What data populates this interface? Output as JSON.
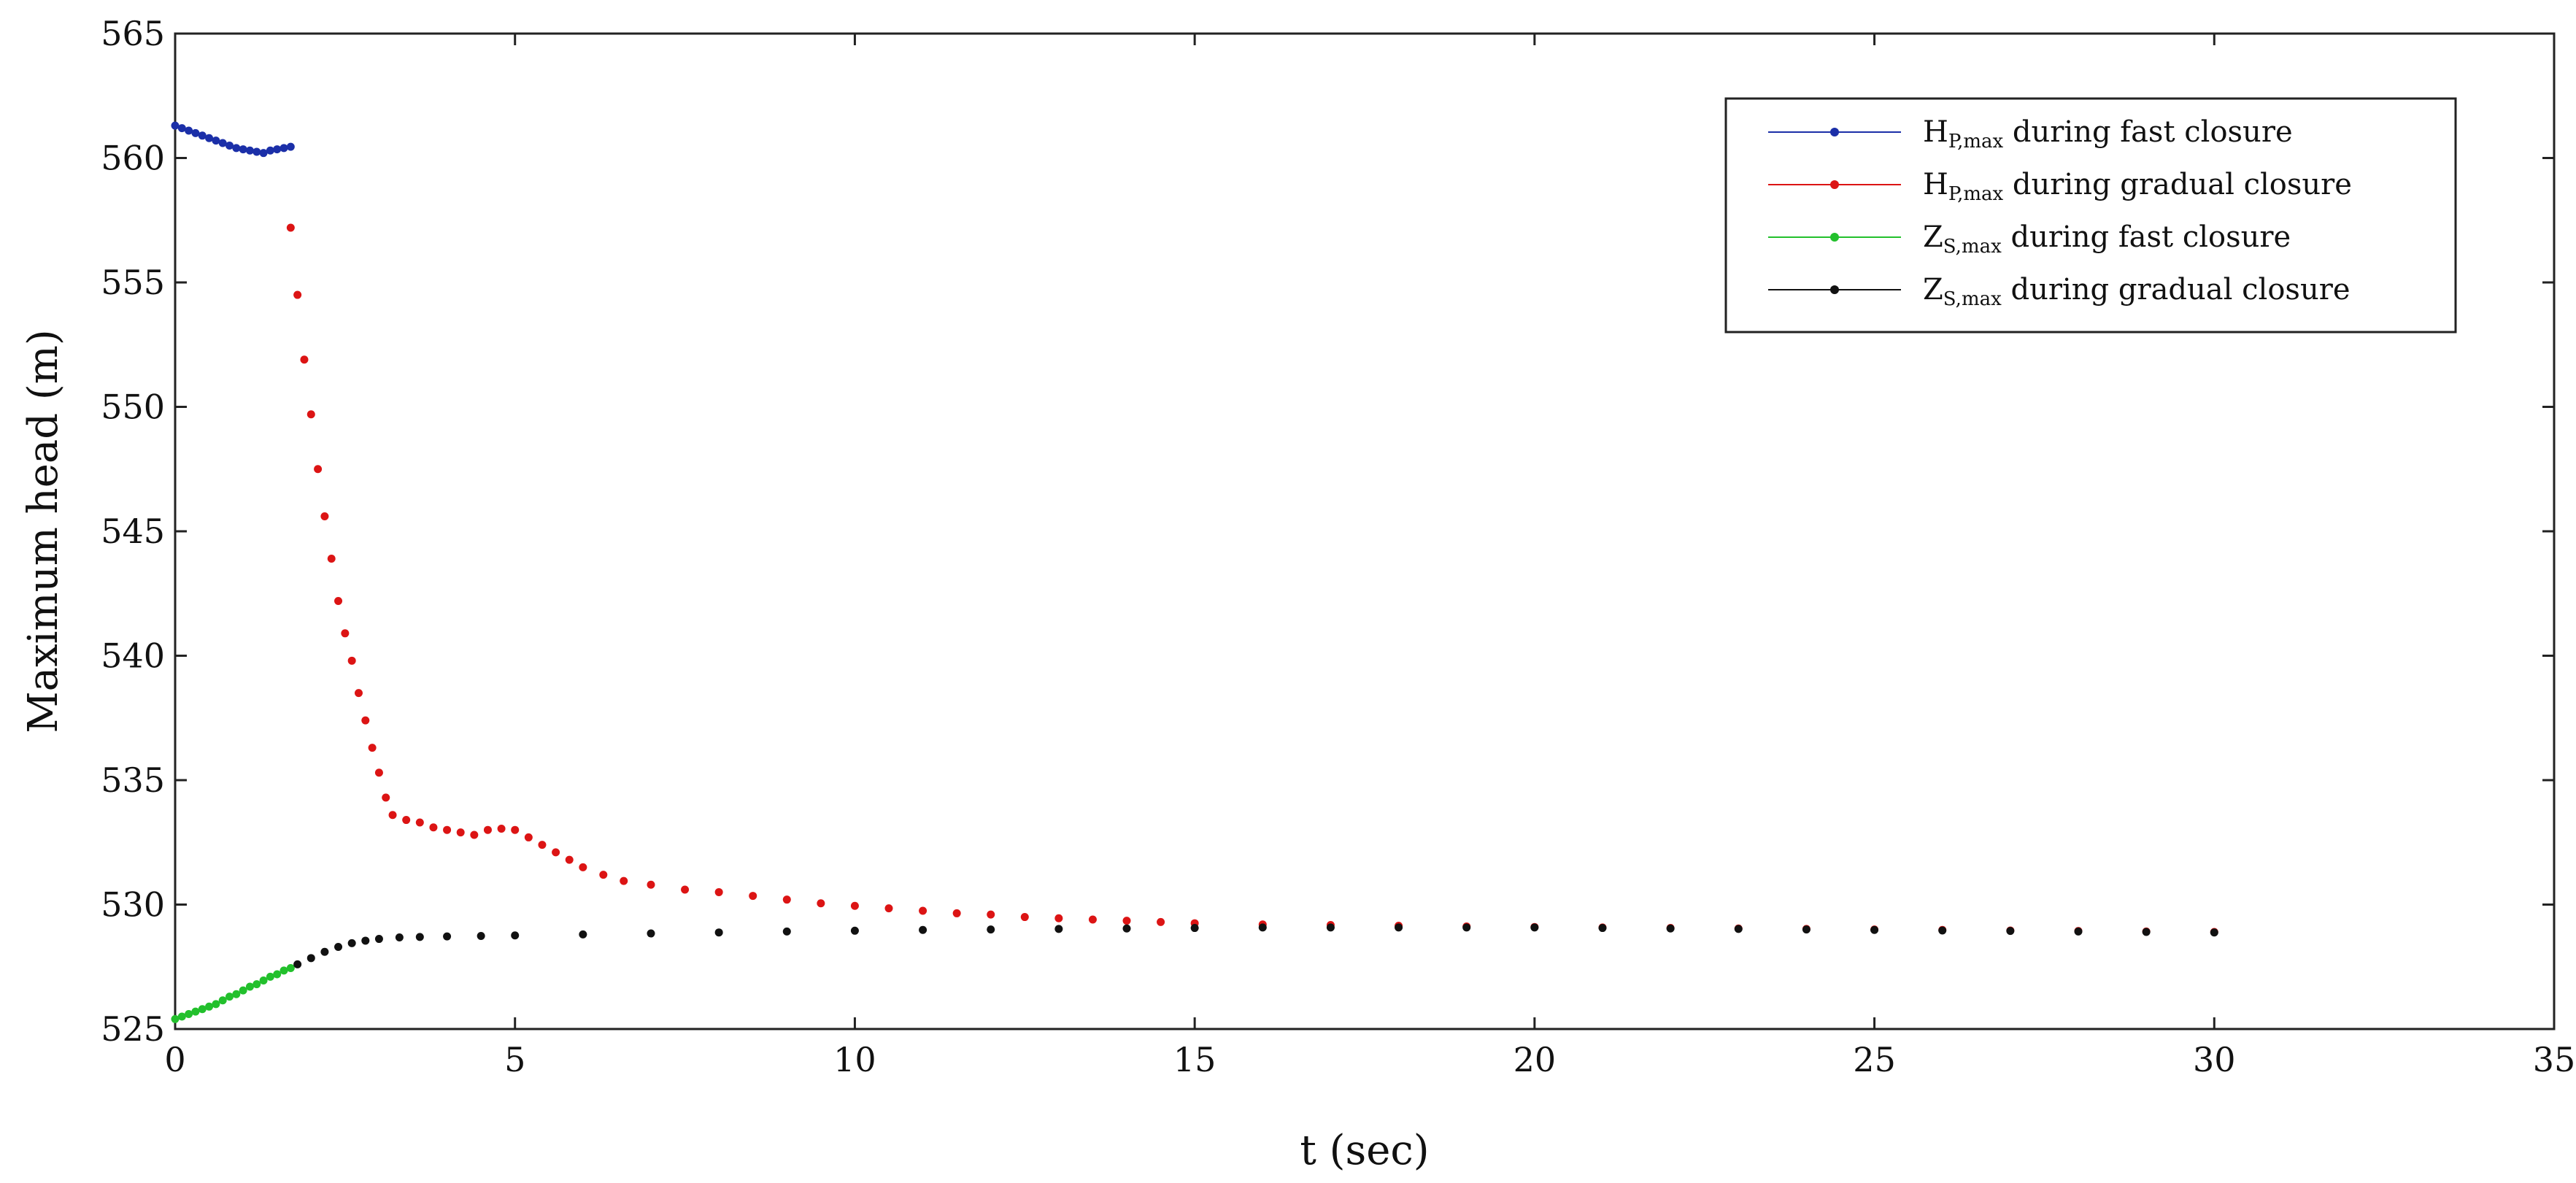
{
  "chart_data": {
    "type": "scatter",
    "title": "",
    "xlabel": "t (sec)",
    "ylabel": "Maximum head (m)",
    "xlim": [
      0,
      35
    ],
    "ylim": [
      525,
      565
    ],
    "xticks": [
      0,
      5,
      10,
      15,
      20,
      25,
      30,
      35
    ],
    "yticks": [
      525,
      530,
      535,
      540,
      545,
      550,
      555,
      560,
      565
    ],
    "grid": false,
    "legend_position": "top-right",
    "series": [
      {
        "name_main": "H",
        "name_sub": "P,max",
        "name_rest": " during fast closure",
        "color": "#1b2fa8",
        "points": [
          [
            0.0,
            561.3
          ],
          [
            0.1,
            561.2
          ],
          [
            0.2,
            561.1
          ],
          [
            0.3,
            561.0
          ],
          [
            0.4,
            560.9
          ],
          [
            0.5,
            560.8
          ],
          [
            0.6,
            560.7
          ],
          [
            0.7,
            560.6
          ],
          [
            0.8,
            560.5
          ],
          [
            0.9,
            560.4
          ],
          [
            1.0,
            560.35
          ],
          [
            1.1,
            560.3
          ],
          [
            1.2,
            560.25
          ],
          [
            1.3,
            560.2
          ],
          [
            1.4,
            560.3
          ],
          [
            1.5,
            560.35
          ],
          [
            1.6,
            560.4
          ],
          [
            1.7,
            560.45
          ]
        ]
      },
      {
        "name_main": "H",
        "name_sub": "P,max",
        "name_rest": " during gradual closure",
        "color": "#dc1414",
        "points": [
          [
            1.7,
            557.2
          ],
          [
            1.8,
            554.5
          ],
          [
            1.9,
            551.9
          ],
          [
            2.0,
            549.7
          ],
          [
            2.1,
            547.5
          ],
          [
            2.2,
            545.6
          ],
          [
            2.3,
            543.9
          ],
          [
            2.4,
            542.2
          ],
          [
            2.5,
            540.9
          ],
          [
            2.6,
            539.8
          ],
          [
            2.7,
            538.5
          ],
          [
            2.8,
            537.4
          ],
          [
            2.9,
            536.3
          ],
          [
            3.0,
            535.3
          ],
          [
            3.1,
            534.3
          ],
          [
            3.2,
            533.6
          ],
          [
            3.4,
            533.4
          ],
          [
            3.6,
            533.3
          ],
          [
            3.8,
            533.1
          ],
          [
            4.0,
            533.0
          ],
          [
            4.2,
            532.9
          ],
          [
            4.4,
            532.8
          ],
          [
            4.6,
            533.0
          ],
          [
            4.8,
            533.05
          ],
          [
            5.0,
            533.0
          ],
          [
            5.2,
            532.7
          ],
          [
            5.4,
            532.4
          ],
          [
            5.6,
            532.1
          ],
          [
            5.8,
            531.8
          ],
          [
            6.0,
            531.5
          ],
          [
            6.3,
            531.2
          ],
          [
            6.6,
            530.95
          ],
          [
            7.0,
            530.8
          ],
          [
            7.5,
            530.6
          ],
          [
            8.0,
            530.5
          ],
          [
            8.5,
            530.35
          ],
          [
            9.0,
            530.2
          ],
          [
            9.5,
            530.05
          ],
          [
            10.0,
            529.95
          ],
          [
            10.5,
            529.85
          ],
          [
            11.0,
            529.75
          ],
          [
            11.5,
            529.65
          ],
          [
            12.0,
            529.6
          ],
          [
            12.5,
            529.5
          ],
          [
            13.0,
            529.45
          ],
          [
            13.5,
            529.4
          ],
          [
            14.0,
            529.35
          ],
          [
            14.5,
            529.3
          ],
          [
            15.0,
            529.25
          ],
          [
            16.0,
            529.2
          ],
          [
            17.0,
            529.18
          ],
          [
            18.0,
            529.15
          ],
          [
            19.0,
            529.12
          ],
          [
            20.0,
            529.1
          ],
          [
            21.0,
            529.08
          ],
          [
            22.0,
            529.06
          ],
          [
            23.0,
            529.04
          ],
          [
            24.0,
            529.02
          ],
          [
            25.0,
            529.0
          ],
          [
            26.0,
            528.98
          ],
          [
            27.0,
            528.96
          ],
          [
            28.0,
            528.94
          ],
          [
            29.0,
            528.92
          ],
          [
            30.0,
            528.9
          ]
        ]
      },
      {
        "name_main": "Z",
        "name_sub": "S,max",
        "name_rest": " during fast closure",
        "color": "#22c02c",
        "points": [
          [
            0.0,
            525.4
          ],
          [
            0.1,
            525.5
          ],
          [
            0.2,
            525.6
          ],
          [
            0.3,
            525.7
          ],
          [
            0.4,
            525.8
          ],
          [
            0.5,
            525.9
          ],
          [
            0.6,
            526.0
          ],
          [
            0.7,
            526.15
          ],
          [
            0.8,
            526.3
          ],
          [
            0.9,
            526.4
          ],
          [
            1.0,
            526.55
          ],
          [
            1.1,
            526.7
          ],
          [
            1.2,
            526.8
          ],
          [
            1.3,
            526.95
          ],
          [
            1.4,
            527.1
          ],
          [
            1.5,
            527.2
          ],
          [
            1.6,
            527.35
          ],
          [
            1.7,
            527.45
          ]
        ]
      },
      {
        "name_main": "Z",
        "name_sub": "S,max",
        "name_rest": " during gradual closure",
        "color": "#111111",
        "points": [
          [
            1.8,
            527.6
          ],
          [
            2.0,
            527.85
          ],
          [
            2.2,
            528.1
          ],
          [
            2.4,
            528.3
          ],
          [
            2.6,
            528.45
          ],
          [
            2.8,
            528.55
          ],
          [
            3.0,
            528.62
          ],
          [
            3.3,
            528.68
          ],
          [
            3.6,
            528.7
          ],
          [
            4.0,
            528.72
          ],
          [
            4.5,
            528.74
          ],
          [
            5.0,
            528.76
          ],
          [
            6.0,
            528.8
          ],
          [
            7.0,
            528.84
          ],
          [
            8.0,
            528.88
          ],
          [
            9.0,
            528.92
          ],
          [
            10.0,
            528.95
          ],
          [
            11.0,
            528.98
          ],
          [
            12.0,
            529.0
          ],
          [
            13.0,
            529.02
          ],
          [
            14.0,
            529.04
          ],
          [
            15.0,
            529.06
          ],
          [
            16.0,
            529.08
          ],
          [
            17.0,
            529.08
          ],
          [
            18.0,
            529.08
          ],
          [
            19.0,
            529.08
          ],
          [
            20.0,
            529.08
          ],
          [
            21.0,
            529.06
          ],
          [
            22.0,
            529.04
          ],
          [
            23.0,
            529.02
          ],
          [
            24.0,
            529.0
          ],
          [
            25.0,
            528.98
          ],
          [
            26.0,
            528.96
          ],
          [
            27.0,
            528.94
          ],
          [
            28.0,
            528.92
          ],
          [
            29.0,
            528.9
          ],
          [
            30.0,
            528.88
          ]
        ]
      }
    ]
  }
}
